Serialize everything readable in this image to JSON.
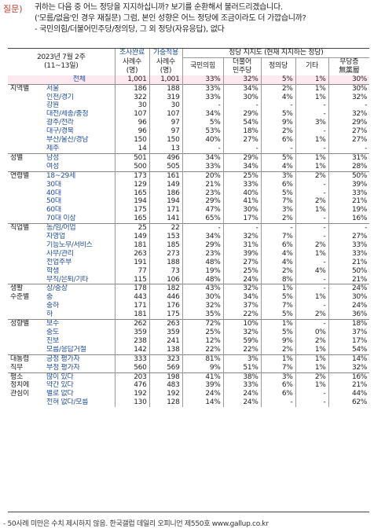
{
  "question": {
    "tag": "질문)",
    "lines": [
      "귀하는 다음 중 어느 정당을 지지하십니까? 보기를 순환해서 불러드리겠습니다.",
      "('모름/없음'인 경우 재질문) 그럼, 본인 성향은 어느 정당에 조금이라도 더 가깝습니까?",
      "- 국민의힘/더불어민주당/정의당, 그 외 정당(자유응답), 없다"
    ]
  },
  "header": {
    "date": "2023년 7월 2주",
    "date_range": "(11~13일)",
    "sample_label": "조사완료",
    "sample_count": "사례수",
    "sample_unit": "(명)",
    "weighted_label": "가중적용",
    "weighted_count": "사례수",
    "weighted_unit": "(명)",
    "group_title": "정당 지지도 (현재 지지하는 정당)",
    "cols": [
      "국민의힘",
      "더불어\n민주당",
      "정의당",
      "기타",
      "무당층\n無黨層"
    ]
  },
  "rows": [
    {
      "g": "",
      "s": "전체",
      "n": "1,001",
      "w": "1,001",
      "v": [
        "33%",
        "32%",
        "5%",
        "1%",
        "30%"
      ],
      "total": true
    },
    {
      "g": "지역별",
      "s": "서울",
      "n": "186",
      "w": "188",
      "v": [
        "33%",
        "34%",
        "2%",
        "1%",
        "30%"
      ],
      "sep": true
    },
    {
      "g": "",
      "s": "인천/경기",
      "n": "322",
      "w": "319",
      "v": [
        "33%",
        "30%",
        "4%",
        "1%",
        "32%"
      ]
    },
    {
      "g": "",
      "s": "강원",
      "n": "30",
      "w": "30",
      "v": [
        "-",
        "-",
        "-",
        "-",
        "-"
      ]
    },
    {
      "g": "",
      "s": "대전/세종/충청",
      "n": "107",
      "w": "107",
      "v": [
        "34%",
        "29%",
        "5%",
        "-",
        "32%"
      ]
    },
    {
      "g": "",
      "s": "광주/전라",
      "n": "96",
      "w": "97",
      "v": [
        "5%",
        "54%",
        "9%",
        "3%",
        "29%"
      ]
    },
    {
      "g": "",
      "s": "대구/경북",
      "n": "96",
      "w": "97",
      "v": [
        "53%",
        "18%",
        "2%",
        "-",
        "27%"
      ]
    },
    {
      "g": "",
      "s": "부산/울산/경남",
      "n": "150",
      "w": "150",
      "v": [
        "40%",
        "27%",
        "6%",
        "1%",
        "27%"
      ]
    },
    {
      "g": "",
      "s": "제주",
      "n": "14",
      "w": "13",
      "v": [
        "-",
        "-",
        "-",
        "-",
        "-"
      ]
    },
    {
      "g": "성별",
      "s": "남성",
      "n": "501",
      "w": "496",
      "v": [
        "34%",
        "29%",
        "5%",
        "1%",
        "31%"
      ],
      "sep": true
    },
    {
      "g": "",
      "s": "여성",
      "n": "500",
      "w": "505",
      "v": [
        "33%",
        "34%",
        "4%",
        "1%",
        "28%"
      ]
    },
    {
      "g": "연령별",
      "s": "18~29세",
      "n": "173",
      "w": "161",
      "v": [
        "20%",
        "25%",
        "3%",
        "2%",
        "50%"
      ],
      "sep": true
    },
    {
      "g": "",
      "s": "30대",
      "n": "129",
      "w": "149",
      "v": [
        "21%",
        "33%",
        "6%",
        "-",
        "39%"
      ]
    },
    {
      "g": "",
      "s": "40대",
      "n": "165",
      "w": "186",
      "v": [
        "23%",
        "40%",
        "5%",
        "-",
        "33%"
      ]
    },
    {
      "g": "",
      "s": "50대",
      "n": "194",
      "w": "194",
      "v": [
        "29%",
        "41%",
        "7%",
        "2%",
        "21%"
      ]
    },
    {
      "g": "",
      "s": "60대",
      "n": "175",
      "w": "171",
      "v": [
        "47%",
        "30%",
        "3%",
        "1%",
        "19%"
      ]
    },
    {
      "g": "",
      "s": "70대 이상",
      "n": "165",
      "w": "141",
      "v": [
        "65%",
        "17%",
        "2%",
        "-",
        "16%"
      ]
    },
    {
      "g": "직업별",
      "s": "농/임/어업",
      "n": "25",
      "w": "22",
      "v": [
        "-",
        "-",
        "-",
        "-",
        "-"
      ],
      "sep": true
    },
    {
      "g": "",
      "s": "자영업",
      "n": "149",
      "w": "153",
      "v": [
        "34%",
        "32%",
        "7%",
        "-",
        "27%"
      ]
    },
    {
      "g": "",
      "s": "기능노무/서비스",
      "n": "181",
      "w": "185",
      "v": [
        "29%",
        "31%",
        "6%",
        "2%",
        "33%"
      ]
    },
    {
      "g": "",
      "s": "사무/관리",
      "n": "263",
      "w": "273",
      "v": [
        "23%",
        "39%",
        "4%",
        "1%",
        "33%"
      ]
    },
    {
      "g": "",
      "s": "전업주부",
      "n": "191",
      "w": "188",
      "v": [
        "48%",
        "27%",
        "4%",
        "-",
        "21%"
      ]
    },
    {
      "g": "",
      "s": "학생",
      "n": "77",
      "w": "73",
      "v": [
        "19%",
        "25%",
        "2%",
        "4%",
        "50%"
      ]
    },
    {
      "g": "",
      "s": "무직/은퇴/기타",
      "n": "115",
      "w": "106",
      "v": [
        "48%",
        "24%",
        "8%",
        "-",
        "21%"
      ]
    },
    {
      "g": "생활",
      "s": "상/중상",
      "n": "178",
      "w": "182",
      "v": [
        "43%",
        "32%",
        "1%",
        "-",
        "24%"
      ],
      "sep": true
    },
    {
      "g": "수준별",
      "s": "중",
      "n": "443",
      "w": "446",
      "v": [
        "30%",
        "34%",
        "5%",
        "1%",
        "30%"
      ]
    },
    {
      "g": "",
      "s": "중하",
      "n": "171",
      "w": "176",
      "v": [
        "32%",
        "37%",
        "7%",
        "-",
        "24%"
      ]
    },
    {
      "g": "",
      "s": "하",
      "n": "181",
      "w": "175",
      "v": [
        "35%",
        "22%",
        "5%",
        "2%",
        "36%"
      ]
    },
    {
      "g": "성향별",
      "s": "보수",
      "n": "262",
      "w": "263",
      "v": [
        "72%",
        "10%",
        "1%",
        "-",
        "18%"
      ],
      "sep": true
    },
    {
      "g": "",
      "s": "중도",
      "n": "359",
      "w": "359",
      "v": [
        "25%",
        "32%",
        "5%",
        "0%",
        "37%"
      ]
    },
    {
      "g": "",
      "s": "진보",
      "n": "238",
      "w": "241",
      "v": [
        "12%",
        "59%",
        "9%",
        "2%",
        "17%"
      ]
    },
    {
      "g": "",
      "s": "모름/응답거절",
      "n": "142",
      "w": "138",
      "v": [
        "22%",
        "22%",
        "2%",
        "1%",
        "54%"
      ]
    },
    {
      "g": "대통령",
      "s": "긍정 평가자",
      "n": "333",
      "w": "323",
      "v": [
        "81%",
        "3%",
        "1%",
        "1%",
        "14%"
      ],
      "sep": true
    },
    {
      "g": "직무",
      "s": "부정 평가자",
      "n": "560",
      "w": "569",
      "v": [
        "9%",
        "51%",
        "7%",
        "1%",
        "32%"
      ]
    },
    {
      "g": "평소",
      "s": "많이 있다",
      "n": "203",
      "w": "198",
      "v": [
        "41%",
        "38%",
        "3%",
        "2%",
        "16%"
      ],
      "sep": true
    },
    {
      "g": "정치에",
      "s": "약간 있다",
      "n": "476",
      "w": "483",
      "v": [
        "39%",
        "33%",
        "6%",
        "1%",
        "21%"
      ]
    },
    {
      "g": "관심이",
      "s": "별로 없다",
      "n": "192",
      "w": "192",
      "v": [
        "24%",
        "24%",
        "6%",
        "-",
        "44%"
      ]
    },
    {
      "g": "",
      "s": "전혀 없다/모름",
      "n": "130",
      "w": "128",
      "v": [
        "14%",
        "24%",
        "-",
        "-",
        "62%"
      ]
    }
  ],
  "footer": "- 50사례 미만은 수치 제시하지 않음. 한국갤럽 데일리 오피니언 제550호 www.gallup.co.kr"
}
